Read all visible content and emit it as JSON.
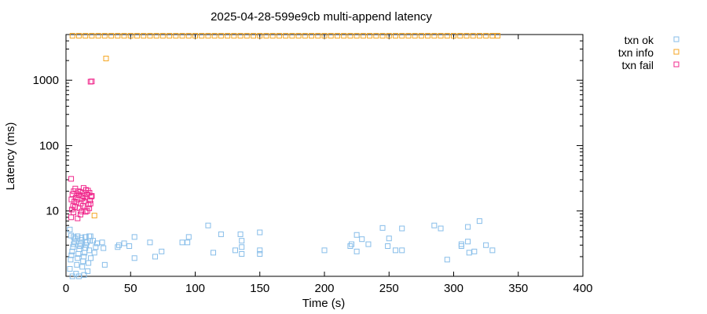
{
  "chart_data": {
    "type": "scatter",
    "title": "2025-04-28-599e9cb multi-append latency",
    "xlabel": "Time (s)",
    "ylabel": "Latency (ms)",
    "xlim": [
      0,
      400
    ],
    "ylim": [
      1,
      5000
    ],
    "yscale": "log",
    "xticks": [
      0,
      50,
      100,
      150,
      200,
      250,
      300,
      350,
      400
    ],
    "yticks": [
      10,
      100,
      1000
    ],
    "legend_position": "outside-top-right",
    "grid": false,
    "series": [
      {
        "name": "txn ok",
        "color": "#87bde9",
        "marker": "open-square",
        "points": [
          [
            3,
            1.3
          ],
          [
            3.6,
            1.8
          ],
          [
            4.2,
            2.1
          ],
          [
            4.8,
            2.4
          ],
          [
            5.4,
            2.8
          ],
          [
            6,
            3.1
          ],
          [
            6.6,
            3.4
          ],
          [
            7.2,
            3.8
          ],
          [
            7.8,
            1.1
          ],
          [
            8.4,
            1.5
          ],
          [
            9,
            1.9
          ],
          [
            9.6,
            2.2
          ],
          [
            10.2,
            2.6
          ],
          [
            10.8,
            2.9
          ],
          [
            11.4,
            3.2
          ],
          [
            12,
            3.6
          ],
          [
            12.6,
            1.4
          ],
          [
            13.2,
            1.7
          ],
          [
            13.8,
            2
          ],
          [
            14.4,
            2.3
          ],
          [
            15,
            2.7
          ],
          [
            15.6,
            3
          ],
          [
            16.2,
            3.3
          ],
          [
            16.8,
            1.2
          ],
          [
            17.4,
            1.6
          ],
          [
            18,
            2.5
          ],
          [
            18.6,
            3.5
          ],
          [
            19.2,
            1.9
          ],
          [
            4,
            4.2
          ],
          [
            6,
            4
          ],
          [
            9,
            4.1
          ],
          [
            12,
            3.9
          ],
          [
            15,
            4
          ],
          [
            18,
            4.1
          ],
          [
            3,
            5.2
          ],
          [
            5,
            1
          ],
          [
            10,
            1
          ],
          [
            14,
            1.05
          ],
          [
            19,
            4.1
          ],
          [
            21,
            3.5
          ],
          [
            22,
            2.3
          ],
          [
            23,
            2.8
          ],
          [
            24,
            3.2
          ],
          [
            28,
            3.3
          ],
          [
            29,
            2.7
          ],
          [
            30,
            1.5
          ],
          [
            40,
            2.8
          ],
          [
            41,
            3
          ],
          [
            45,
            3.2
          ],
          [
            49,
            2.9
          ],
          [
            53,
            1.9
          ],
          [
            53,
            4
          ],
          [
            65,
            3.3
          ],
          [
            69,
            2
          ],
          [
            74,
            2.4
          ],
          [
            90,
            3.3
          ],
          [
            94,
            3.3
          ],
          [
            95,
            4
          ],
          [
            110,
            6
          ],
          [
            114,
            2.3
          ],
          [
            120,
            4.4
          ],
          [
            131,
            2.5
          ],
          [
            135,
            4.4
          ],
          [
            136,
            3.5
          ],
          [
            136,
            2.8
          ],
          [
            136,
            2.2
          ],
          [
            150,
            4.7
          ],
          [
            150,
            2.5
          ],
          [
            150,
            2.2
          ],
          [
            200,
            2.5
          ],
          [
            220,
            2.9
          ],
          [
            221,
            3.1
          ],
          [
            225,
            2.4
          ],
          [
            225,
            4.3
          ],
          [
            229,
            3.7
          ],
          [
            234,
            3.1
          ],
          [
            245,
            5.5
          ],
          [
            249,
            2.9
          ],
          [
            250,
            3.8
          ],
          [
            255,
            2.5
          ],
          [
            260,
            5.4
          ],
          [
            260,
            2.5
          ],
          [
            285,
            6
          ],
          [
            290,
            5.4
          ],
          [
            295,
            1.8
          ],
          [
            306,
            2.9
          ],
          [
            306,
            3.1
          ],
          [
            311,
            5.7
          ],
          [
            311,
            3.4
          ],
          [
            312,
            2.3
          ],
          [
            316,
            2.4
          ],
          [
            320,
            7
          ],
          [
            325,
            3
          ],
          [
            330,
            2.5
          ]
        ]
      },
      {
        "name": "txn info",
        "color": "#f5a623",
        "marker": "open-square",
        "points": [
          [
            5,
            4800
          ],
          [
            10,
            4800
          ],
          [
            15,
            4800
          ],
          [
            20,
            4800
          ],
          [
            25,
            4800
          ],
          [
            30,
            4800
          ],
          [
            35,
            4800
          ],
          [
            40,
            4800
          ],
          [
            45,
            4800
          ],
          [
            50,
            4800
          ],
          [
            55,
            4800
          ],
          [
            60,
            4800
          ],
          [
            65,
            4800
          ],
          [
            70,
            4800
          ],
          [
            75,
            4800
          ],
          [
            80,
            4800
          ],
          [
            85,
            4800
          ],
          [
            90,
            4800
          ],
          [
            95,
            4800
          ],
          [
            100,
            4800
          ],
          [
            105,
            4800
          ],
          [
            110,
            4800
          ],
          [
            115,
            4800
          ],
          [
            120,
            4800
          ],
          [
            125,
            4800
          ],
          [
            130,
            4800
          ],
          [
            135,
            4800
          ],
          [
            140,
            4800
          ],
          [
            145,
            4800
          ],
          [
            150,
            4800
          ],
          [
            155,
            4800
          ],
          [
            160,
            4800
          ],
          [
            165,
            4800
          ],
          [
            170,
            4800
          ],
          [
            175,
            4800
          ],
          [
            180,
            4800
          ],
          [
            185,
            4800
          ],
          [
            190,
            4800
          ],
          [
            195,
            4800
          ],
          [
            200,
            4800
          ],
          [
            205,
            4800
          ],
          [
            210,
            4800
          ],
          [
            215,
            4800
          ],
          [
            220,
            4800
          ],
          [
            225,
            4800
          ],
          [
            230,
            4800
          ],
          [
            235,
            4800
          ],
          [
            240,
            4800
          ],
          [
            245,
            4800
          ],
          [
            250,
            4800
          ],
          [
            255,
            4800
          ],
          [
            260,
            4800
          ],
          [
            265,
            4800
          ],
          [
            270,
            4800
          ],
          [
            275,
            4800
          ],
          [
            280,
            4800
          ],
          [
            285,
            4800
          ],
          [
            290,
            4800
          ],
          [
            295,
            4800
          ],
          [
            300,
            4800
          ],
          [
            305,
            4800
          ],
          [
            310,
            4800
          ],
          [
            315,
            4800
          ],
          [
            320,
            4800
          ],
          [
            325,
            4800
          ],
          [
            330,
            4800
          ],
          [
            334,
            4800
          ],
          [
            31,
            2150
          ],
          [
            22,
            8.5
          ]
        ]
      },
      {
        "name": "txn fail",
        "color": "#f0288c",
        "marker": "open-square",
        "points": [
          [
            4,
            31
          ],
          [
            4,
            8
          ],
          [
            9,
            7.7
          ],
          [
            20,
            960
          ],
          [
            19,
            950
          ],
          [
            4.5,
            10.5
          ],
          [
            5.5,
            12
          ],
          [
            6.5,
            14
          ],
          [
            7.5,
            16
          ],
          [
            8.5,
            18.5
          ],
          [
            9.5,
            20
          ],
          [
            10.5,
            11
          ],
          [
            11.5,
            13
          ],
          [
            12.5,
            15.5
          ],
          [
            13.5,
            17
          ],
          [
            14.5,
            19
          ],
          [
            15.5,
            21
          ],
          [
            16.5,
            10
          ],
          [
            17.5,
            12.5
          ],
          [
            18.5,
            14.5
          ],
          [
            19.5,
            16.5
          ],
          [
            5,
            18
          ],
          [
            6,
            20
          ],
          [
            7,
            11.5
          ],
          [
            8,
            13.5
          ],
          [
            9,
            15
          ],
          [
            10,
            17.5
          ],
          [
            11,
            19.5
          ],
          [
            12,
            9.8
          ],
          [
            13,
            12
          ],
          [
            14,
            14
          ],
          [
            15,
            16
          ],
          [
            16,
            18
          ],
          [
            17,
            20.5
          ],
          [
            18,
            11
          ],
          [
            19,
            13
          ],
          [
            4.2,
            15
          ],
          [
            20,
            17
          ],
          [
            5.8,
            9.5
          ],
          [
            7.2,
            22
          ],
          [
            13.6,
            22.5
          ],
          [
            15.2,
            9.7
          ],
          [
            11.2,
            8.8
          ],
          [
            18.2,
            19
          ]
        ]
      }
    ]
  }
}
